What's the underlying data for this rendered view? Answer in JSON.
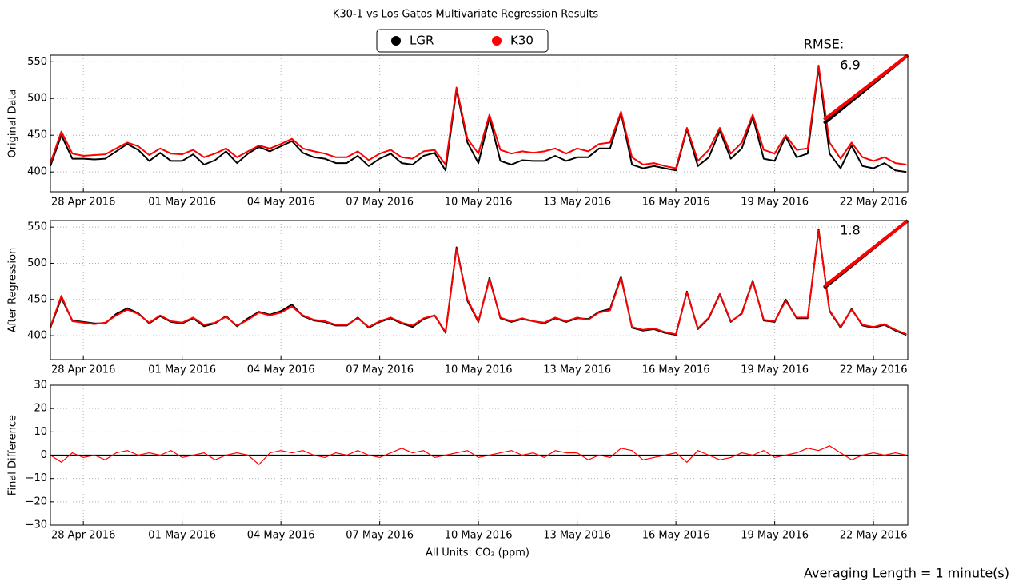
{
  "footer": "Averaging Length = 1 minute(s)",
  "chart_data": [
    {
      "type": "line",
      "title": "K30-1 vs Los Gatos Multivariate Regression Results",
      "ylabel": "Original Data",
      "legend": "upper center",
      "rmse_title": "RMSE:",
      "rmse": "6.9",
      "grid": true,
      "xlim": [
        "2016-04-27T00:00",
        "2016-05-23T01:00"
      ],
      "xticks": [
        {
          "value": "2016-04-28T00:00",
          "label": "28 Apr 2016"
        },
        {
          "value": "2016-05-01T00:00",
          "label": "01 May 2016"
        },
        {
          "value": "2016-05-04T00:00",
          "label": "04 May 2016"
        },
        {
          "value": "2016-05-07T00:00",
          "label": "07 May 2016"
        },
        {
          "value": "2016-05-10T00:00",
          "label": "10 May 2016"
        },
        {
          "value": "2016-05-13T00:00",
          "label": "13 May 2016"
        },
        {
          "value": "2016-05-16T00:00",
          "label": "16 May 2016"
        },
        {
          "value": "2016-05-19T00:00",
          "label": "19 May 2016"
        },
        {
          "value": "2016-05-22T00:00",
          "label": "22 May 2016"
        }
      ],
      "ylim": [
        373,
        559
      ],
      "yticks": [
        400,
        450,
        500,
        550
      ],
      "x": [
        "2016-04-27T00:00",
        "2016-04-27T08:00",
        "2016-04-27T16:00",
        "2016-04-28T00:00",
        "2016-04-28T08:00",
        "2016-04-28T16:00",
        "2016-04-29T00:00",
        "2016-04-29T08:00",
        "2016-04-29T16:00",
        "2016-04-30T00:00",
        "2016-04-30T08:00",
        "2016-04-30T16:00",
        "2016-05-01T00:00",
        "2016-05-01T08:00",
        "2016-05-01T16:00",
        "2016-05-02T00:00",
        "2016-05-02T08:00",
        "2016-05-02T16:00",
        "2016-05-03T00:00",
        "2016-05-03T08:00",
        "2016-05-03T16:00",
        "2016-05-04T00:00",
        "2016-05-04T08:00",
        "2016-05-04T16:00",
        "2016-05-05T00:00",
        "2016-05-05T08:00",
        "2016-05-05T16:00",
        "2016-05-06T00:00",
        "2016-05-06T08:00",
        "2016-05-06T16:00",
        "2016-05-07T00:00",
        "2016-05-07T08:00",
        "2016-05-07T16:00",
        "2016-05-08T00:00",
        "2016-05-08T08:00",
        "2016-05-08T16:00",
        "2016-05-09T00:00",
        "2016-05-09T08:00",
        "2016-05-09T16:00",
        "2016-05-10T00:00",
        "2016-05-10T08:00",
        "2016-05-10T16:00",
        "2016-05-11T00:00",
        "2016-05-11T08:00",
        "2016-05-11T16:00",
        "2016-05-12T00:00",
        "2016-05-12T08:00",
        "2016-05-12T16:00",
        "2016-05-13T00:00",
        "2016-05-13T08:00",
        "2016-05-13T16:00",
        "2016-05-14T00:00",
        "2016-05-14T08:00",
        "2016-05-14T16:00",
        "2016-05-15T00:00",
        "2016-05-15T08:00",
        "2016-05-15T16:00",
        "2016-05-16T00:00",
        "2016-05-16T08:00",
        "2016-05-16T16:00",
        "2016-05-17T00:00",
        "2016-05-17T08:00",
        "2016-05-17T16:00",
        "2016-05-18T00:00",
        "2016-05-18T08:00",
        "2016-05-18T16:00",
        "2016-05-19T00:00",
        "2016-05-19T08:00",
        "2016-05-19T16:00",
        "2016-05-20T00:00",
        "2016-05-20T08:00",
        "2016-05-20T16:00",
        "2016-05-21T00:00",
        "2016-05-21T08:00",
        "2016-05-21T16:00",
        "2016-05-22T00:00",
        "2016-05-22T08:00",
        "2016-05-22T16:00",
        "2016-05-23T00:00"
      ],
      "series": [
        {
          "name": "LGR",
          "color": "#000000",
          "values": [
            408,
            450,
            418,
            418,
            417,
            418,
            428,
            438,
            430,
            415,
            426,
            415,
            415,
            424,
            410,
            416,
            428,
            412,
            425,
            434,
            428,
            435,
            442,
            426,
            420,
            418,
            412,
            412,
            422,
            408,
            418,
            425,
            412,
            410,
            422,
            426,
            402,
            512,
            440,
            412,
            474,
            415,
            410,
            416,
            415,
            415,
            422,
            415,
            420,
            420,
            432,
            432,
            480,
            410,
            405,
            408,
            405,
            402,
            458,
            408,
            420,
            456,
            418,
            432,
            475,
            418,
            415,
            448,
            420,
            425,
            542,
            425,
            405,
            436,
            408,
            405,
            412,
            402,
            400
          ]
        },
        {
          "name": "K30",
          "color": "#ff0000",
          "values": [
            412,
            455,
            425,
            422,
            423,
            424,
            432,
            440,
            435,
            423,
            432,
            425,
            424,
            430,
            420,
            425,
            432,
            420,
            428,
            436,
            432,
            438,
            445,
            432,
            428,
            425,
            420,
            420,
            428,
            416,
            425,
            430,
            420,
            418,
            428,
            430,
            410,
            515,
            445,
            425,
            478,
            430,
            425,
            428,
            426,
            428,
            432,
            425,
            432,
            428,
            438,
            440,
            482,
            420,
            410,
            412,
            408,
            405,
            460,
            415,
            430,
            460,
            425,
            440,
            478,
            430,
            425,
            450,
            430,
            432,
            545,
            440,
            418,
            440,
            420,
            415,
            420,
            412,
            410
          ]
        }
      ],
      "inset": {
        "xlim": [
          465,
          560
        ],
        "series": [
          {
            "color": "#000000",
            "x": [
              467,
              560
            ],
            "values": [
              466,
              560
            ]
          },
          {
            "color": "#ff0000",
            "x": [
              467,
              560
            ],
            "values": [
              471,
              562
            ]
          }
        ]
      }
    },
    {
      "type": "line",
      "ylabel": "After Regression",
      "rmse": "1.8",
      "grid": true,
      "xlim": [
        "2016-04-27T00:00",
        "2016-05-23T01:00"
      ],
      "xticks": [
        {
          "value": "2016-04-28T00:00",
          "label": "28 Apr 2016"
        },
        {
          "value": "2016-05-01T00:00",
          "label": "01 May 2016"
        },
        {
          "value": "2016-05-04T00:00",
          "label": "04 May 2016"
        },
        {
          "value": "2016-05-07T00:00",
          "label": "07 May 2016"
        },
        {
          "value": "2016-05-10T00:00",
          "label": "10 May 2016"
        },
        {
          "value": "2016-05-13T00:00",
          "label": "13 May 2016"
        },
        {
          "value": "2016-05-16T00:00",
          "label": "16 May 2016"
        },
        {
          "value": "2016-05-19T00:00",
          "label": "19 May 2016"
        },
        {
          "value": "2016-05-22T00:00",
          "label": "22 May 2016"
        }
      ],
      "ylim": [
        367,
        559
      ],
      "yticks": [
        400,
        450,
        500,
        550
      ],
      "x": [
        "2016-04-27T00:00",
        "2016-04-27T08:00",
        "2016-04-27T16:00",
        "2016-04-28T00:00",
        "2016-04-28T08:00",
        "2016-04-28T16:00",
        "2016-04-29T00:00",
        "2016-04-29T08:00",
        "2016-04-29T16:00",
        "2016-04-30T00:00",
        "2016-04-30T08:00",
        "2016-04-30T16:00",
        "2016-05-01T00:00",
        "2016-05-01T08:00",
        "2016-05-01T16:00",
        "2016-05-02T00:00",
        "2016-05-02T08:00",
        "2016-05-02T16:00",
        "2016-05-03T00:00",
        "2016-05-03T08:00",
        "2016-05-03T16:00",
        "2016-05-04T00:00",
        "2016-05-04T08:00",
        "2016-05-04T16:00",
        "2016-05-05T00:00",
        "2016-05-05T08:00",
        "2016-05-05T16:00",
        "2016-05-06T00:00",
        "2016-05-06T08:00",
        "2016-05-06T16:00",
        "2016-05-07T00:00",
        "2016-05-07T08:00",
        "2016-05-07T16:00",
        "2016-05-08T00:00",
        "2016-05-08T08:00",
        "2016-05-08T16:00",
        "2016-05-09T00:00",
        "2016-05-09T08:00",
        "2016-05-09T16:00",
        "2016-05-10T00:00",
        "2016-05-10T08:00",
        "2016-05-10T16:00",
        "2016-05-11T00:00",
        "2016-05-11T08:00",
        "2016-05-11T16:00",
        "2016-05-12T00:00",
        "2016-05-12T08:00",
        "2016-05-12T16:00",
        "2016-05-13T00:00",
        "2016-05-13T08:00",
        "2016-05-13T16:00",
        "2016-05-14T00:00",
        "2016-05-14T08:00",
        "2016-05-14T16:00",
        "2016-05-15T00:00",
        "2016-05-15T08:00",
        "2016-05-15T16:00",
        "2016-05-16T00:00",
        "2016-05-16T08:00",
        "2016-05-16T16:00",
        "2016-05-17T00:00",
        "2016-05-17T08:00",
        "2016-05-17T16:00",
        "2016-05-18T00:00",
        "2016-05-18T08:00",
        "2016-05-18T16:00",
        "2016-05-19T00:00",
        "2016-05-19T08:00",
        "2016-05-19T16:00",
        "2016-05-20T00:00",
        "2016-05-20T08:00",
        "2016-05-20T16:00",
        "2016-05-21T00:00",
        "2016-05-21T08:00",
        "2016-05-21T16:00",
        "2016-05-22T00:00",
        "2016-05-22T08:00",
        "2016-05-22T16:00",
        "2016-05-23T00:00"
      ],
      "series": [
        {
          "color": "#000000",
          "values": [
            411,
            452,
            421,
            419,
            417,
            417,
            430,
            438,
            431,
            417,
            427,
            419,
            417,
            424,
            413,
            417,
            427,
            413,
            424,
            433,
            429,
            434,
            443,
            427,
            421,
            419,
            414,
            414,
            425,
            411,
            419,
            424,
            417,
            412,
            423,
            428,
            404,
            522,
            448,
            419,
            480,
            424,
            419,
            423,
            420,
            417,
            424,
            419,
            424,
            423,
            433,
            437,
            482,
            411,
            407,
            409,
            404,
            401,
            461,
            409,
            424,
            457,
            419,
            431,
            476,
            421,
            419,
            450,
            424,
            424,
            547,
            434,
            411,
            437,
            414,
            411,
            415,
            407,
            401
          ]
        },
        {
          "color": "#ff0000",
          "values": [
            412,
            455,
            420,
            418,
            416,
            418,
            428,
            436,
            430,
            418,
            428,
            420,
            418,
            425,
            415,
            418,
            426,
            414,
            422,
            432,
            428,
            432,
            440,
            428,
            422,
            420,
            415,
            415,
            424,
            412,
            420,
            425,
            418,
            414,
            424,
            428,
            405,
            520,
            450,
            420,
            478,
            425,
            420,
            424,
            420,
            418,
            425,
            420,
            425,
            422,
            432,
            435,
            480,
            412,
            408,
            410,
            405,
            402,
            460,
            410,
            425,
            458,
            420,
            430,
            475,
            422,
            420,
            448,
            425,
            425,
            545,
            435,
            412,
            436,
            415,
            412,
            416,
            408,
            402
          ]
        }
      ],
      "inset": {
        "xlim": [
          465,
          560
        ],
        "series": [
          {
            "color": "#000000",
            "x": [
              467,
              560
            ],
            "values": [
              466,
              560
            ]
          },
          {
            "color": "#ff0000",
            "x": [
              467,
              560
            ],
            "values": [
              468,
              561
            ]
          }
        ]
      }
    },
    {
      "type": "line",
      "ylabel": "Final Difference",
      "xlabel": "All Units: CO₂ (ppm)",
      "grid": true,
      "hline": 0,
      "xlim": [
        "2016-04-27T00:00",
        "2016-05-23T01:00"
      ],
      "xticks": [
        {
          "value": "2016-04-28T00:00",
          "label": "28 Apr 2016"
        },
        {
          "value": "2016-05-01T00:00",
          "label": "01 May 2016"
        },
        {
          "value": "2016-05-04T00:00",
          "label": "04 May 2016"
        },
        {
          "value": "2016-05-07T00:00",
          "label": "07 May 2016"
        },
        {
          "value": "2016-05-10T00:00",
          "label": "10 May 2016"
        },
        {
          "value": "2016-05-13T00:00",
          "label": "13 May 2016"
        },
        {
          "value": "2016-05-16T00:00",
          "label": "16 May 2016"
        },
        {
          "value": "2016-05-19T00:00",
          "label": "19 May 2016"
        },
        {
          "value": "2016-05-22T00:00",
          "label": "22 May 2016"
        }
      ],
      "ylim": [
        -30,
        30
      ],
      "yticks": [
        {
          "value": -30,
          "label": "−30"
        },
        {
          "value": -20,
          "label": "−20"
        },
        {
          "value": -10,
          "label": "−10"
        },
        0,
        10,
        20,
        30
      ],
      "x": [
        "2016-04-27T00:00",
        "2016-04-27T08:00",
        "2016-04-27T16:00",
        "2016-04-28T00:00",
        "2016-04-28T08:00",
        "2016-04-28T16:00",
        "2016-04-29T00:00",
        "2016-04-29T08:00",
        "2016-04-29T16:00",
        "2016-04-30T00:00",
        "2016-04-30T08:00",
        "2016-04-30T16:00",
        "2016-05-01T00:00",
        "2016-05-01T08:00",
        "2016-05-01T16:00",
        "2016-05-02T00:00",
        "2016-05-02T08:00",
        "2016-05-02T16:00",
        "2016-05-03T00:00",
        "2016-05-03T08:00",
        "2016-05-03T16:00",
        "2016-05-04T00:00",
        "2016-05-04T08:00",
        "2016-05-04T16:00",
        "2016-05-05T00:00",
        "2016-05-05T08:00",
        "2016-05-05T16:00",
        "2016-05-06T00:00",
        "2016-05-06T08:00",
        "2016-05-06T16:00",
        "2016-05-07T00:00",
        "2016-05-07T08:00",
        "2016-05-07T16:00",
        "2016-05-08T00:00",
        "2016-05-08T08:00",
        "2016-05-08T16:00",
        "2016-05-09T00:00",
        "2016-05-09T08:00",
        "2016-05-09T16:00",
        "2016-05-10T00:00",
        "2016-05-10T08:00",
        "2016-05-10T16:00",
        "2016-05-11T00:00",
        "2016-05-11T08:00",
        "2016-05-11T16:00",
        "2016-05-12T00:00",
        "2016-05-12T08:00",
        "2016-05-12T16:00",
        "2016-05-13T00:00",
        "2016-05-13T08:00",
        "2016-05-13T16:00",
        "2016-05-14T00:00",
        "2016-05-14T08:00",
        "2016-05-14T16:00",
        "2016-05-15T00:00",
        "2016-05-15T08:00",
        "2016-05-15T16:00",
        "2016-05-16T00:00",
        "2016-05-16T08:00",
        "2016-05-16T16:00",
        "2016-05-17T00:00",
        "2016-05-17T08:00",
        "2016-05-17T16:00",
        "2016-05-18T00:00",
        "2016-05-18T08:00",
        "2016-05-18T16:00",
        "2016-05-19T00:00",
        "2016-05-19T08:00",
        "2016-05-19T16:00",
        "2016-05-20T00:00",
        "2016-05-20T08:00",
        "2016-05-20T16:00",
        "2016-05-21T00:00",
        "2016-05-21T08:00",
        "2016-05-21T16:00",
        "2016-05-22T00:00",
        "2016-05-22T08:00",
        "2016-05-22T16:00",
        "2016-05-23T00:00"
      ],
      "series": [
        {
          "color": "#ff0000",
          "values": [
            0,
            -3,
            1,
            -1,
            0,
            -2,
            1,
            2,
            0,
            1,
            0,
            2,
            -1,
            0,
            1,
            -2,
            0,
            1,
            0,
            -4,
            1,
            2,
            1,
            2,
            0,
            -1,
            1,
            0,
            2,
            0,
            -1,
            1,
            3,
            1,
            2,
            -1,
            0,
            1,
            2,
            -1,
            0,
            1,
            2,
            0,
            1,
            -1,
            2,
            1,
            1,
            -2,
            0,
            -1,
            3,
            2,
            -2,
            -1,
            0,
            1,
            -3,
            2,
            0,
            -2,
            -1,
            1,
            0,
            2,
            -1,
            0,
            1,
            3,
            2,
            4,
            1,
            -2,
            0,
            1,
            0,
            1,
            0
          ]
        }
      ]
    }
  ]
}
